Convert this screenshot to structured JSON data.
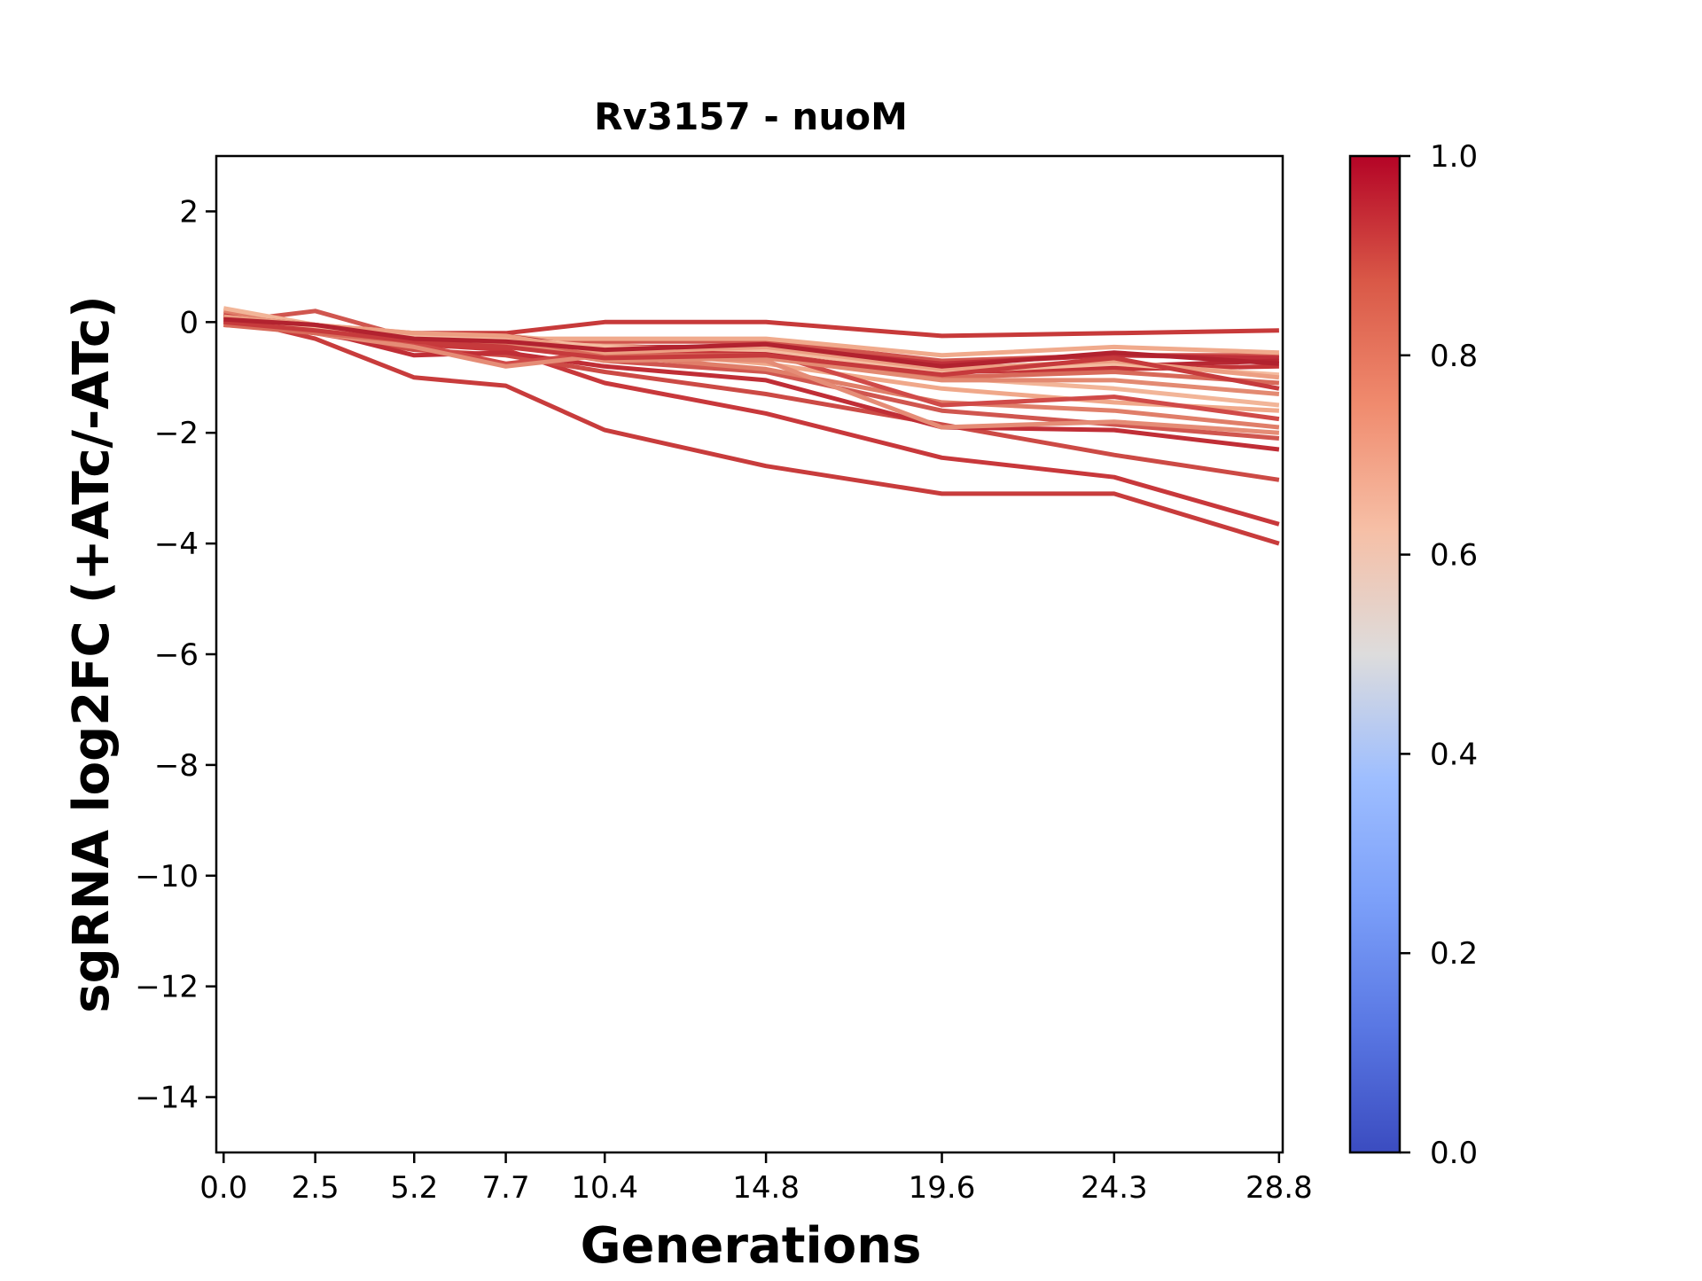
{
  "chart_data": {
    "type": "line",
    "title": "Rv3157 - nuoM",
    "xlabel": "Generations",
    "ylabel": "sgRNA log2FC (+ATc/-ATc)",
    "x": [
      0.0,
      2.5,
      5.2,
      7.7,
      10.4,
      14.8,
      19.6,
      24.3,
      28.8
    ],
    "x_tick_labels": [
      "0.0",
      "2.5",
      "5.2",
      "7.7",
      "10.4",
      "14.8",
      "19.6",
      "24.3",
      "28.8"
    ],
    "xlim": [
      -0.2,
      28.9
    ],
    "ylim": [
      -15,
      3
    ],
    "y_ticks": [
      2,
      0,
      -2,
      -4,
      -6,
      -8,
      -10,
      -12,
      -14
    ],
    "y_tick_labels": [
      "2",
      "0",
      "−2",
      "−4",
      "−6",
      "−8",
      "−10",
      "−12",
      "−14"
    ],
    "grid": false,
    "colorbar": {
      "colormap": "coolwarm",
      "range": [
        0.0,
        1.0
      ],
      "ticks": [
        0.0,
        0.2,
        0.4,
        0.6,
        0.8,
        1.0
      ],
      "tick_labels": [
        "0.0",
        "0.2",
        "0.4",
        "0.6",
        "0.8",
        "1.0"
      ]
    },
    "series": [
      {
        "values": [
          0.1,
          -0.3,
          -1.0,
          -1.15,
          -1.95,
          -2.6,
          -3.1,
          -3.1,
          -4.0
        ],
        "color": "#c83c3c"
      },
      {
        "values": [
          0.0,
          -0.1,
          -0.4,
          -0.5,
          -1.1,
          -1.65,
          -2.45,
          -2.8,
          -3.65
        ],
        "color": "#c8383b"
      },
      {
        "values": [
          0.05,
          -0.2,
          -0.5,
          -0.6,
          -0.9,
          -1.3,
          -1.85,
          -2.4,
          -2.85
        ],
        "color": "#cc4a45"
      },
      {
        "values": [
          0.15,
          -0.15,
          -0.6,
          -0.55,
          -0.8,
          -1.05,
          -1.9,
          -1.95,
          -2.3
        ],
        "color": "#c02e36"
      },
      {
        "values": [
          0.0,
          0.2,
          -0.3,
          -0.4,
          -0.7,
          -0.9,
          -1.6,
          -1.85,
          -2.1
        ],
        "color": "#d0564f"
      },
      {
        "values": [
          0.2,
          -0.05,
          -0.3,
          -0.35,
          -0.6,
          -0.85,
          -1.45,
          -1.6,
          -1.9
        ],
        "color": "#e07e69"
      },
      {
        "values": [
          0.1,
          -0.1,
          -0.25,
          -0.3,
          -0.5,
          -0.75,
          -1.2,
          -1.45,
          -1.6
        ],
        "color": "#f0a88a"
      },
      {
        "values": [
          0.25,
          -0.05,
          -0.2,
          -0.25,
          -0.4,
          -0.6,
          -1.0,
          -1.2,
          -1.5
        ],
        "color": "#f2b598"
      },
      {
        "values": [
          -0.05,
          -0.15,
          -0.4,
          -0.75,
          -0.55,
          -0.55,
          -1.5,
          -1.35,
          -1.75
        ],
        "color": "#d04a48"
      },
      {
        "values": [
          0.05,
          -0.2,
          -0.45,
          -0.8,
          -0.6,
          -0.7,
          -1.9,
          -1.8,
          -2.0
        ],
        "color": "#e58c76"
      },
      {
        "values": [
          0.1,
          -0.1,
          -0.2,
          -0.2,
          0.0,
          0.0,
          -0.25,
          -0.2,
          -0.15
        ],
        "color": "#c73a3a"
      },
      {
        "values": [
          0.0,
          -0.05,
          -0.3,
          -0.3,
          -0.35,
          -0.35,
          -0.7,
          -0.6,
          -0.6
        ],
        "color": "#d0544d"
      },
      {
        "values": [
          0.05,
          -0.1,
          -0.2,
          -0.3,
          -0.3,
          -0.3,
          -0.6,
          -0.45,
          -0.55
        ],
        "color": "#f0aa8c"
      },
      {
        "values": [
          0.0,
          -0.15,
          -0.3,
          -0.35,
          -0.45,
          -0.45,
          -0.75,
          -0.6,
          -0.65
        ],
        "color": "#c0303a"
      },
      {
        "values": [
          0.1,
          -0.05,
          -0.25,
          -0.25,
          -0.5,
          -0.55,
          -0.8,
          -0.8,
          -0.7
        ],
        "color": "#b82833"
      },
      {
        "values": [
          0.05,
          -0.1,
          -0.3,
          -0.4,
          -0.55,
          -0.5,
          -0.9,
          -0.85,
          -0.8
        ],
        "color": "#c43438"
      },
      {
        "values": [
          -0.05,
          -0.2,
          -0.35,
          -0.4,
          -0.6,
          -0.6,
          -1.0,
          -0.9,
          -1.1
        ],
        "color": "#d86a5a"
      },
      {
        "values": [
          0.0,
          -0.1,
          -0.3,
          -0.35,
          -0.7,
          -0.65,
          -1.05,
          -1.05,
          -1.3
        ],
        "color": "#e38a72"
      },
      {
        "values": [
          0.05,
          -0.1,
          -0.25,
          -0.3,
          -0.45,
          -0.5,
          -0.9,
          -0.75,
          -0.95
        ],
        "color": "#f4bca0"
      },
      {
        "values": [
          0.1,
          -0.05,
          -0.2,
          -0.25,
          -0.55,
          -0.45,
          -0.85,
          -0.7,
          -1.0
        ],
        "color": "#ec9e82"
      },
      {
        "values": [
          0.0,
          -0.15,
          -0.35,
          -0.45,
          -0.65,
          -0.6,
          -0.95,
          -0.65,
          -1.2
        ],
        "color": "#c63a3c"
      },
      {
        "values": [
          0.05,
          -0.05,
          -0.3,
          -0.35,
          -0.5,
          -0.4,
          -0.8,
          -0.55,
          -0.75
        ],
        "color": "#b2222f"
      }
    ]
  }
}
